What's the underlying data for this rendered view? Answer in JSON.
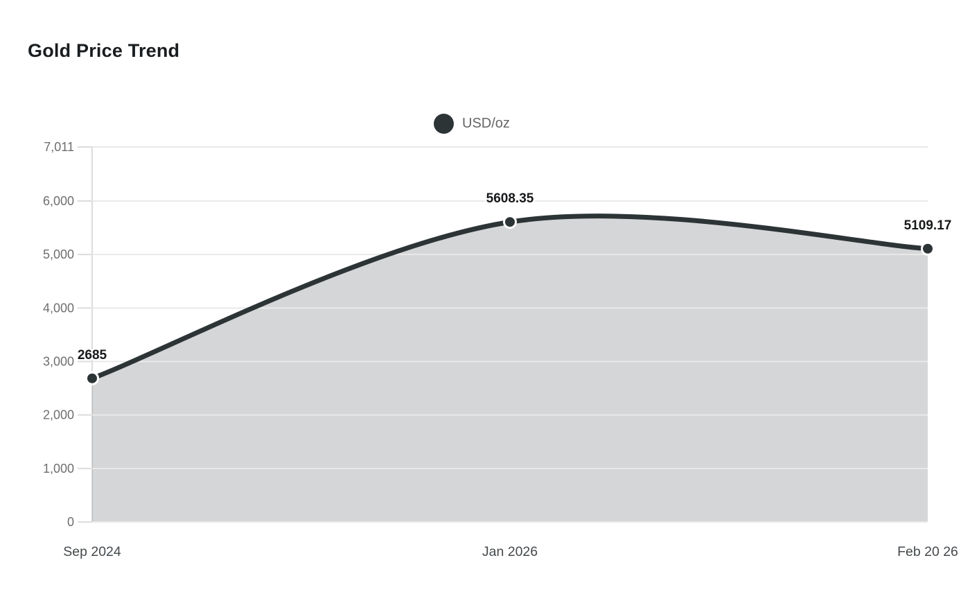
{
  "title": "Gold Price Trend",
  "legend": {
    "label": "USD/oz",
    "marker_color": "#2d3436"
  },
  "colors": {
    "line": "#2d3436",
    "area_fill": "#2d3436",
    "area_opacity": 0.2,
    "grid": "#e9e9e9",
    "axis": "#dcdcdc",
    "tick": "#dcdcdc",
    "marker_ring": "#ffffff",
    "background": "#ffffff"
  },
  "chart_data": {
    "type": "area",
    "title": "Gold Price Trend",
    "categories": [
      "Sep 2024",
      "Jan 2026",
      "Feb 20 26"
    ],
    "series": [
      {
        "name": "USD/oz",
        "values": [
          2685,
          5608.35,
          5109.17
        ]
      }
    ],
    "data_labels": [
      "2685",
      "5608.35",
      "5109.17"
    ],
    "y_ticks": [
      0,
      1000,
      2000,
      3000,
      4000,
      5000,
      6000,
      7011
    ],
    "y_tick_labels": [
      "0",
      "1,000",
      "2,000",
      "3,000",
      "4,000",
      "5,000",
      "6,000",
      "7,011"
    ],
    "ylim": [
      0,
      7011
    ],
    "xlabel": "",
    "ylabel": "",
    "grid": true,
    "smooth": true,
    "legend_position": "top-center"
  }
}
